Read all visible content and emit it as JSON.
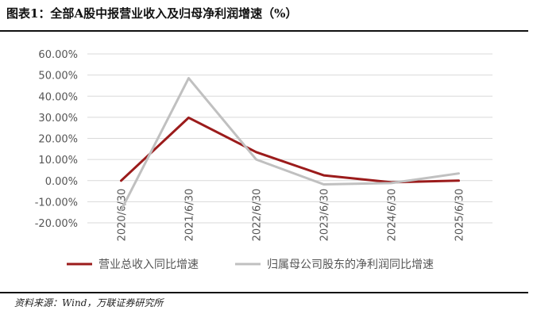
{
  "title": "图表1：全部A股中报营业收入及归母净利润增速（%）",
  "source": "资料来源：Wind，万联证券研究所",
  "chart_data": {
    "type": "line",
    "categories": [
      "2020/6/30",
      "2021/6/30",
      "2022/6/30",
      "2023/6/30",
      "2024/6/30",
      "2025/6/30"
    ],
    "yticks": [
      "60.00%",
      "50.00%",
      "40.00%",
      "30.00%",
      "20.00%",
      "10.00%",
      "0.00%",
      "-10.00%",
      "-20.00%"
    ],
    "ylim": [
      -20,
      60
    ],
    "grid": true,
    "legend_position": "bottom",
    "series": [
      {
        "name": "营业总收入同比增速",
        "color": "#9b1b1b",
        "values": [
          0.0,
          29.8,
          13.5,
          2.5,
          -0.8,
          0.0
        ]
      },
      {
        "name": "归属母公司股东的净利润同比增速",
        "color": "#c0c0c0",
        "values": [
          -14.0,
          48.5,
          10.0,
          -1.8,
          -1.2,
          3.4
        ]
      }
    ]
  }
}
